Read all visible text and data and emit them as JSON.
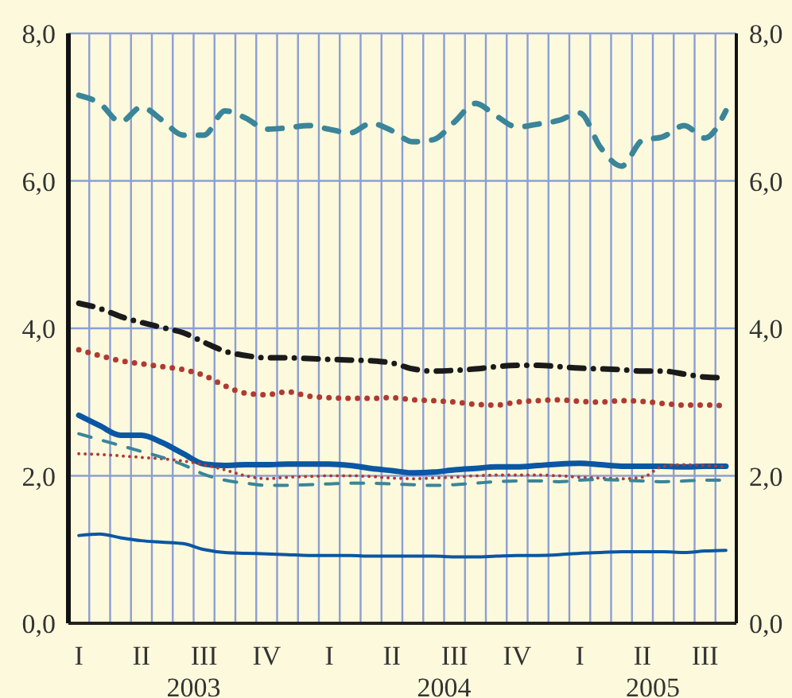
{
  "chart_data": {
    "type": "line",
    "categories": [
      "I",
      null,
      null,
      "II",
      null,
      null,
      "III",
      null,
      null,
      "IV",
      null,
      null,
      "I",
      null,
      null,
      "II",
      null,
      null,
      "III",
      null,
      null,
      "IV",
      null,
      null,
      "I",
      null,
      null,
      "II",
      null,
      null,
      "III",
      null
    ],
    "series": [
      {
        "color": "#3a8599",
        "line_style": "dashed",
        "values": [
          7.16,
          7.05,
          6.8,
          7.0,
          6.82,
          6.62,
          6.62,
          6.95,
          6.85,
          6.7,
          6.72,
          6.75,
          6.7,
          6.65,
          6.78,
          6.68,
          6.53,
          6.56,
          6.8,
          7.05,
          6.88,
          6.73,
          6.77,
          6.82,
          6.92,
          6.45,
          6.2,
          6.55,
          6.6,
          6.75,
          6.58,
          6.95
        ]
      },
      {
        "color": "#1a1a1a",
        "line_style": "dashdot",
        "values": [
          4.34,
          4.27,
          4.16,
          4.08,
          4.01,
          3.94,
          3.81,
          3.69,
          3.63,
          3.6,
          3.6,
          3.59,
          3.58,
          3.57,
          3.56,
          3.53,
          3.45,
          3.42,
          3.43,
          3.45,
          3.48,
          3.5,
          3.5,
          3.48,
          3.46,
          3.45,
          3.44,
          3.42,
          3.42,
          3.38,
          3.34,
          3.33
        ]
      },
      {
        "color": "#b03a32",
        "line_style": "dotted",
        "values": [
          3.71,
          3.63,
          3.56,
          3.52,
          3.48,
          3.44,
          3.36,
          3.22,
          3.12,
          3.1,
          3.14,
          3.08,
          3.06,
          3.05,
          3.05,
          3.06,
          3.03,
          3.02,
          3.0,
          2.97,
          2.96,
          3.0,
          3.02,
          3.03,
          3.01,
          3.0,
          3.02,
          3.01,
          2.98,
          2.96,
          2.96,
          2.95
        ]
      },
      {
        "color": "#0a57a3",
        "line_style": "solid",
        "values": [
          2.82,
          2.68,
          2.55,
          2.55,
          2.45,
          2.3,
          2.16,
          2.14,
          2.15,
          2.15,
          2.16,
          2.16,
          2.16,
          2.14,
          2.1,
          2.07,
          2.04,
          2.05,
          2.08,
          2.1,
          2.12,
          2.12,
          2.14,
          2.16,
          2.17,
          2.15,
          2.13,
          2.13,
          2.13,
          2.12,
          2.13,
          2.13
        ]
      },
      {
        "color": "#b03a32",
        "line_style": "dotted",
        "values": [
          2.3,
          2.29,
          2.27,
          2.25,
          2.23,
          2.2,
          2.15,
          2.08,
          2.0,
          1.96,
          1.98,
          1.99,
          2.0,
          2.0,
          1.99,
          1.97,
          1.96,
          1.97,
          1.98,
          2.0,
          2.01,
          2.01,
          2.01,
          2.0,
          1.98,
          1.97,
          1.96,
          1.98,
          2.13,
          2.15,
          2.14,
          2.12
        ]
      },
      {
        "color": "#3a8599",
        "line_style": "dashed",
        "values": [
          2.57,
          2.49,
          2.41,
          2.33,
          2.25,
          2.15,
          2.02,
          1.94,
          1.9,
          1.87,
          1.87,
          1.88,
          1.89,
          1.9,
          1.9,
          1.89,
          1.88,
          1.87,
          1.88,
          1.9,
          1.92,
          1.93,
          1.93,
          1.92,
          1.94,
          1.95,
          1.94,
          1.93,
          1.92,
          1.93,
          1.94,
          1.94
        ]
      },
      {
        "color": "#0a57a3",
        "line_style": "solid",
        "values": [
          1.19,
          1.21,
          1.16,
          1.12,
          1.1,
          1.08,
          1.0,
          0.96,
          0.95,
          0.94,
          0.93,
          0.92,
          0.92,
          0.92,
          0.91,
          0.91,
          0.91,
          0.91,
          0.9,
          0.9,
          0.91,
          0.92,
          0.92,
          0.93,
          0.95,
          0.96,
          0.97,
          0.97,
          0.97,
          0.96,
          0.98,
          0.99
        ]
      }
    ],
    "annotations": [
      "2003",
      "2004",
      "2005"
    ],
    "ylim": [
      0,
      8
    ],
    "yticks": [
      {
        "value": 0,
        "label": "0,0"
      },
      {
        "value": 2,
        "label": "2,0"
      },
      {
        "value": 4,
        "label": "4,0"
      },
      {
        "value": 6,
        "label": "6,0"
      },
      {
        "value": 8,
        "label": "8,0"
      }
    ],
    "y2lim": [
      0,
      8
    ],
    "y2ticks": [
      {
        "value": 0,
        "label": "0,0"
      },
      {
        "value": 2,
        "label": "2,0"
      },
      {
        "value": 4,
        "label": "4,0"
      },
      {
        "value": 6,
        "label": "6,0"
      },
      {
        "value": 8,
        "label": "8,0"
      }
    ],
    "grid": true,
    "marker": "none"
  }
}
